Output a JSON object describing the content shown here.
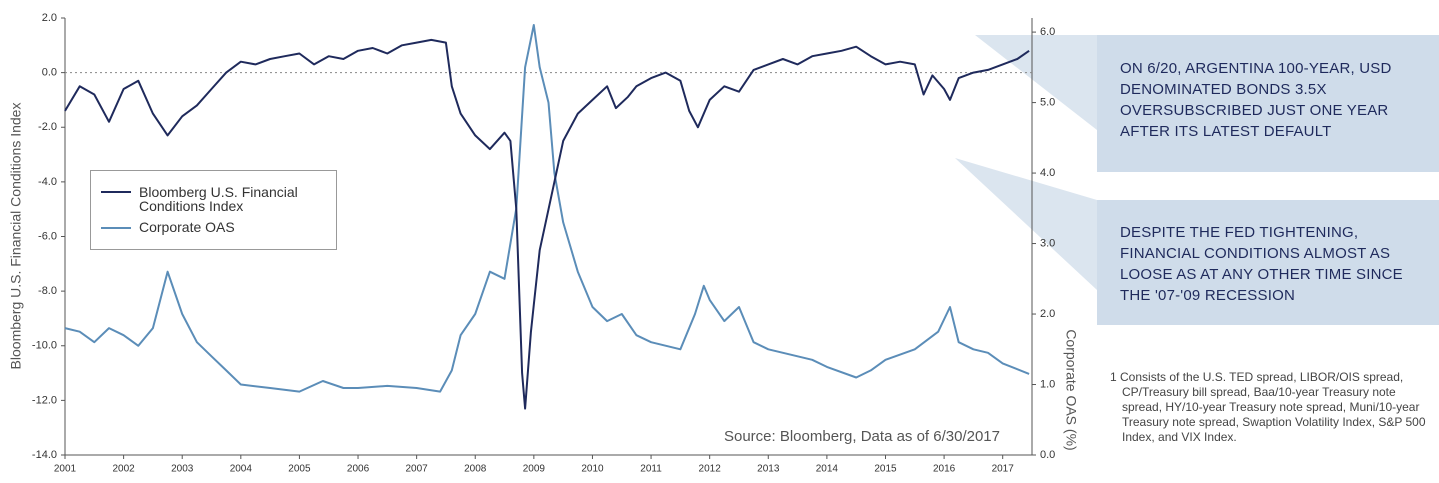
{
  "chart_data": {
    "type": "line",
    "y_label": "Bloomberg U.S. Financial Conditions Index",
    "y2_label": "Corporate OAS (%)",
    "source": "Source: Bloomberg, Data as of 6/30/2017",
    "annotations": [
      "ON 6/20, ARGENTINA 100-YEAR, USD DENOMINATED BONDS 3.5X OVERSUBSCRIBED JUST ONE YEAR AFTER ITS LATEST DEFAULT",
      "DESPITE THE FED TIGHTENING, FINANCIAL CONDITIONS ALMOST AS LOOSE AS AT ANY OTHER TIME SINCE THE '07-'09 RECESSION"
    ],
    "footnote": "1 Consists of the U.S. TED spread, LIBOR/OIS spread, CP/Treasury bill spread, Baa/10-year Treasury note spread, HY/10-year Treasury note spread, Muni/10-year Treasury note spread, Swaption Volatility Index, S&P 500 Index, and VIX Index.",
    "xlim": [
      2001,
      2017.5
    ],
    "xticks": [
      2001,
      2002,
      2003,
      2004,
      2005,
      2006,
      2007,
      2008,
      2009,
      2010,
      2011,
      2012,
      2013,
      2014,
      2015,
      2016,
      2017
    ],
    "ylim": [
      -14,
      2
    ],
    "yticks": [
      {
        "value": 2,
        "label": "2.0"
      },
      {
        "value": 0,
        "label": "0.0"
      },
      {
        "value": -2,
        "label": "-2.0"
      },
      {
        "value": -4,
        "label": "-4.0"
      },
      {
        "value": -6,
        "label": "-6.0"
      },
      {
        "value": -8,
        "label": "-8.0"
      },
      {
        "value": -10,
        "label": "-10.0"
      },
      {
        "value": -12,
        "label": "-12.0"
      },
      {
        "value": -14,
        "label": "-14.0"
      }
    ],
    "y2lim": [
      0,
      6.2
    ],
    "y2ticks": [
      {
        "value": 0,
        "label": "0.0"
      },
      {
        "value": 1,
        "label": "1.0"
      },
      {
        "value": 2,
        "label": "2.0"
      },
      {
        "value": 3,
        "label": "3.0"
      },
      {
        "value": 4,
        "label": "4.0"
      },
      {
        "value": 5,
        "label": "5.0"
      },
      {
        "value": 6,
        "label": "6.0"
      }
    ],
    "zero_line": true,
    "legend": "left",
    "series": [
      {
        "name": "Bloomberg U.S. Financial Conditions Index",
        "color": "#1f2a5c",
        "axis": "y",
        "x": [
          2001.0,
          2001.25,
          2001.5,
          2001.75,
          2002.0,
          2002.25,
          2002.5,
          2002.75,
          2003.0,
          2003.25,
          2003.5,
          2003.75,
          2004.0,
          2004.25,
          2004.5,
          2004.75,
          2005.0,
          2005.25,
          2005.5,
          2005.75,
          2006.0,
          2006.25,
          2006.5,
          2006.75,
          2007.0,
          2007.25,
          2007.5,
          2007.6,
          2007.75,
          2008.0,
          2008.25,
          2008.5,
          2008.6,
          2008.7,
          2008.8,
          2008.85,
          2008.95,
          2009.0,
          2009.1,
          2009.2,
          2009.35,
          2009.5,
          2009.75,
          2010.0,
          2010.25,
          2010.4,
          2010.6,
          2010.75,
          2011.0,
          2011.25,
          2011.5,
          2011.65,
          2011.8,
          2012.0,
          2012.25,
          2012.5,
          2012.75,
          2013.0,
          2013.25,
          2013.5,
          2013.75,
          2014.0,
          2014.25,
          2014.5,
          2014.75,
          2015.0,
          2015.25,
          2015.5,
          2015.65,
          2015.8,
          2016.0,
          2016.1,
          2016.25,
          2016.5,
          2016.75,
          2017.0,
          2017.25,
          2017.45
        ],
        "values": [
          -1.4,
          -0.5,
          -0.8,
          -1.8,
          -0.6,
          -0.3,
          -1.5,
          -2.3,
          -1.6,
          -1.2,
          -0.6,
          0.0,
          0.4,
          0.3,
          0.5,
          0.6,
          0.7,
          0.3,
          0.6,
          0.5,
          0.8,
          0.9,
          0.7,
          1.0,
          1.1,
          1.2,
          1.1,
          -0.5,
          -1.5,
          -2.3,
          -2.8,
          -2.2,
          -2.5,
          -5.0,
          -11.0,
          -12.3,
          -9.5,
          -8.5,
          -6.5,
          -5.5,
          -4.0,
          -2.5,
          -1.5,
          -1.0,
          -0.5,
          -1.3,
          -0.9,
          -0.5,
          -0.2,
          0.0,
          -0.3,
          -1.4,
          -2.0,
          -1.0,
          -0.5,
          -0.7,
          0.1,
          0.3,
          0.5,
          0.3,
          0.6,
          0.7,
          0.8,
          0.95,
          0.6,
          0.3,
          0.4,
          0.3,
          -0.8,
          -0.1,
          -0.6,
          -1.0,
          -0.2,
          0.0,
          0.1,
          0.3,
          0.5,
          0.8
        ]
      },
      {
        "name": "Corporate OAS",
        "color": "#5b8db8",
        "axis": "y2",
        "x": [
          2001.0,
          2001.25,
          2001.5,
          2001.75,
          2002.0,
          2002.25,
          2002.5,
          2002.75,
          2003.0,
          2003.25,
          2003.5,
          2003.75,
          2004.0,
          2004.5,
          2005.0,
          2005.4,
          2005.75,
          2006.0,
          2006.5,
          2007.0,
          2007.4,
          2007.6,
          2007.75,
          2008.0,
          2008.25,
          2008.5,
          2008.7,
          2008.85,
          2009.0,
          2009.1,
          2009.25,
          2009.35,
          2009.5,
          2009.75,
          2010.0,
          2010.25,
          2010.5,
          2010.75,
          2011.0,
          2011.5,
          2011.75,
          2011.9,
          2012.0,
          2012.25,
          2012.5,
          2012.75,
          2013.0,
          2013.5,
          2013.75,
          2014.0,
          2014.5,
          2014.75,
          2015.0,
          2015.5,
          2015.9,
          2016.1,
          2016.25,
          2016.5,
          2016.75,
          2017.0,
          2017.45
        ],
        "values": [
          1.8,
          1.75,
          1.6,
          1.8,
          1.7,
          1.55,
          1.8,
          2.6,
          2.0,
          1.6,
          1.4,
          1.2,
          1.0,
          0.95,
          0.9,
          1.05,
          0.95,
          0.95,
          0.98,
          0.95,
          0.9,
          1.2,
          1.7,
          2.0,
          2.6,
          2.5,
          3.5,
          5.5,
          6.1,
          5.5,
          5.0,
          4.0,
          3.3,
          2.6,
          2.1,
          1.9,
          2.0,
          1.7,
          1.6,
          1.5,
          2.0,
          2.4,
          2.2,
          1.9,
          2.1,
          1.6,
          1.5,
          1.4,
          1.35,
          1.25,
          1.1,
          1.2,
          1.35,
          1.5,
          1.75,
          2.1,
          1.6,
          1.5,
          1.45,
          1.3,
          1.15
        ]
      }
    ]
  }
}
